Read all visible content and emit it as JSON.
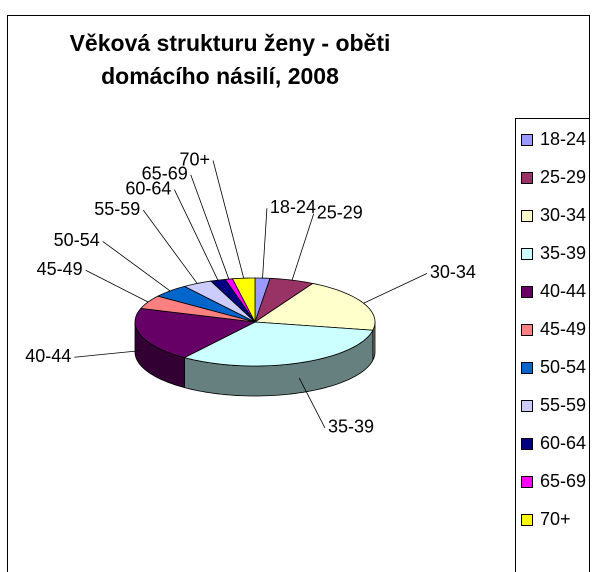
{
  "chart_data": {
    "type": "pie3d",
    "title": "Věková strukturu ženy - oběti domácího násilí, 2008",
    "categories": [
      "18-24",
      "25-29",
      "30-34",
      "35-39",
      "40-44",
      "45-49",
      "50-54",
      "55-59",
      "60-64",
      "65-69",
      "70+"
    ],
    "values": [
      2,
      6,
      20,
      32,
      20,
      5,
      5,
      4,
      2,
      1,
      3
    ],
    "series": [
      {
        "colors": [
          "#9999FF",
          "#993366",
          "#FFFFCC",
          "#CCFFFF",
          "#660066",
          "#FF8080",
          "#0066CC",
          "#CCCCFF",
          "#000080",
          "#FF00FF",
          "#FFFF00"
        ]
      }
    ],
    "legend": "right"
  }
}
